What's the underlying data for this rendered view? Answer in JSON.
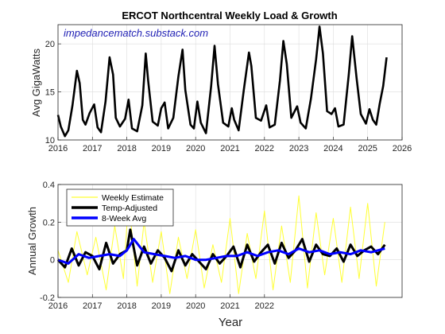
{
  "chart_data": [
    {
      "type": "line",
      "title": "ERCOT Northcentral Weekly Load & Growth",
      "annotation": "impedancematch.substack.com",
      "xlabel": "",
      "ylabel": "Avg GigaWatts",
      "xlim": [
        2016,
        2026
      ],
      "ylim": [
        10,
        22
      ],
      "xticks": [
        2016,
        2017,
        2018,
        2019,
        2020,
        2021,
        2022,
        2023,
        2024,
        2025,
        2026
      ],
      "yticks": [
        10,
        15,
        20
      ],
      "grid": true,
      "series": [
        {
          "color": "#000000",
          "x": [
            2016.0,
            2016.08,
            2016.2,
            2016.3,
            2016.42,
            2016.55,
            2016.63,
            2016.72,
            2016.8,
            2016.92,
            2017.05,
            2017.15,
            2017.25,
            2017.38,
            2017.5,
            2017.6,
            2017.68,
            2017.8,
            2017.95,
            2018.05,
            2018.15,
            2018.3,
            2018.45,
            2018.55,
            2018.62,
            2018.75,
            2018.9,
            2019.0,
            2019.1,
            2019.2,
            2019.35,
            2019.5,
            2019.62,
            2019.7,
            2019.85,
            2019.95,
            2020.05,
            2020.15,
            2020.3,
            2020.45,
            2020.55,
            2020.65,
            2020.8,
            2020.95,
            2021.05,
            2021.12,
            2021.25,
            2021.4,
            2021.55,
            2021.62,
            2021.75,
            2021.9,
            2022.05,
            2022.15,
            2022.3,
            2022.45,
            2022.55,
            2022.65,
            2022.78,
            2022.95,
            2023.05,
            2023.2,
            2023.35,
            2023.5,
            2023.6,
            2023.7,
            2023.82,
            2023.95,
            2024.05,
            2024.15,
            2024.3,
            2024.45,
            2024.55,
            2024.68,
            2024.8,
            2024.95,
            2025.05,
            2025.15,
            2025.25,
            2025.35,
            2025.45,
            2025.55
          ],
          "values": [
            12.6,
            11.4,
            10.4,
            11.0,
            13.6,
            17.2,
            15.9,
            12.1,
            11.6,
            12.8,
            13.7,
            11.3,
            10.8,
            14.0,
            18.6,
            16.8,
            12.3,
            11.4,
            12.2,
            14.2,
            11.2,
            10.9,
            13.6,
            19.0,
            16.2,
            11.9,
            11.5,
            13.3,
            13.9,
            11.2,
            12.3,
            16.6,
            19.4,
            15.2,
            11.6,
            11.2,
            14.0,
            11.8,
            10.7,
            15.6,
            19.8,
            15.8,
            11.8,
            11.4,
            13.3,
            12.1,
            11.0,
            15.2,
            19.1,
            17.7,
            12.3,
            12.0,
            13.6,
            11.3,
            11.6,
            16.2,
            20.3,
            17.9,
            12.3,
            13.5,
            11.8,
            11.2,
            14.3,
            18.4,
            21.8,
            19.0,
            13.0,
            12.7,
            13.3,
            11.4,
            11.6,
            16.8,
            20.8,
            16.4,
            12.7,
            11.7,
            13.2,
            12.1,
            11.6,
            13.8,
            15.6,
            18.6
          ]
        }
      ]
    },
    {
      "type": "line",
      "title": "",
      "xlabel": "Year",
      "ylabel": "Annual Growth",
      "xlim": [
        2016,
        2026
      ],
      "ylim": [
        -0.2,
        0.4
      ],
      "xticks": [
        2016,
        2017,
        2018,
        2019,
        2020,
        2021,
        2022
      ],
      "yticks": [
        -0.2,
        0,
        0.2,
        0.4
      ],
      "grid": true,
      "legend": "top-left",
      "series": [
        {
          "name": "Weekly Estimate",
          "color": "#ffff33",
          "x": [
            2016.0,
            2016.3,
            2016.55,
            2016.85,
            2017.1,
            2017.4,
            2017.65,
            2017.9,
            2018.05,
            2018.3,
            2018.5,
            2018.75,
            2019.0,
            2019.25,
            2019.5,
            2019.75,
            2020.0,
            2020.25,
            2020.5,
            2020.75,
            2021.0,
            2021.25,
            2021.5,
            2021.75,
            2022.0,
            2022.25,
            2022.5,
            2022.75,
            2023.0,
            2023.25,
            2023.5,
            2023.75,
            2024.0,
            2024.25,
            2024.5,
            2024.75,
            2025.0,
            2025.25,
            2025.5
          ],
          "values": [
            0.05,
            -0.12,
            0.15,
            -0.08,
            0.12,
            -0.16,
            0.18,
            -0.1,
            0.32,
            -0.14,
            0.2,
            -0.12,
            0.15,
            -0.18,
            0.12,
            -0.1,
            0.16,
            -0.15,
            0.08,
            -0.12,
            0.22,
            -0.18,
            0.14,
            -0.1,
            0.26,
            -0.16,
            0.18,
            -0.12,
            0.34,
            -0.15,
            0.25,
            -0.08,
            0.22,
            -0.12,
            0.28,
            -0.1,
            0.3,
            -0.14,
            0.2
          ]
        },
        {
          "name": "Temp-Adjusted",
          "color": "#000000",
          "x": [
            2016.0,
            2016.2,
            2016.4,
            2016.6,
            2016.8,
            2017.0,
            2017.2,
            2017.4,
            2017.6,
            2017.8,
            2018.0,
            2018.1,
            2018.3,
            2018.5,
            2018.7,
            2018.9,
            2019.1,
            2019.3,
            2019.5,
            2019.7,
            2019.9,
            2020.1,
            2020.3,
            2020.5,
            2020.7,
            2020.9,
            2021.1,
            2021.3,
            2021.5,
            2021.7,
            2021.9,
            2022.1,
            2022.3,
            2022.5,
            2022.7,
            2022.9,
            2023.1,
            2023.3,
            2023.5,
            2023.7,
            2023.9,
            2024.1,
            2024.3,
            2024.5,
            2024.7,
            2024.9,
            2025.1,
            2025.3,
            2025.5
          ],
          "values": [
            0.0,
            -0.04,
            0.06,
            -0.03,
            0.04,
            0.02,
            -0.05,
            0.09,
            -0.02,
            0.03,
            0.05,
            0.16,
            -0.03,
            0.07,
            -0.02,
            0.05,
            0.01,
            -0.06,
            0.05,
            -0.03,
            0.03,
            -0.01,
            -0.05,
            0.03,
            -0.02,
            0.02,
            0.07,
            -0.04,
            0.08,
            -0.01,
            0.04,
            0.08,
            -0.02,
            0.09,
            0.01,
            0.05,
            0.11,
            -0.01,
            0.08,
            0.03,
            0.02,
            0.06,
            -0.01,
            0.08,
            0.02,
            0.05,
            0.07,
            0.03,
            0.08
          ]
        },
        {
          "name": "8-Week Avg",
          "color": "#0000ff",
          "x": [
            2016.0,
            2016.3,
            2016.6,
            2016.9,
            2017.2,
            2017.5,
            2017.8,
            2018.0,
            2018.2,
            2018.5,
            2018.8,
            2019.1,
            2019.4,
            2019.7,
            2020.0,
            2020.3,
            2020.6,
            2020.9,
            2021.2,
            2021.5,
            2021.8,
            2022.1,
            2022.4,
            2022.7,
            2023.0,
            2023.3,
            2023.6,
            2023.9,
            2024.2,
            2024.5,
            2024.8,
            2025.1,
            2025.5
          ],
          "values": [
            0.0,
            -0.02,
            0.03,
            0.01,
            0.02,
            0.03,
            0.02,
            0.05,
            0.11,
            0.04,
            0.03,
            0.02,
            0.01,
            0.02,
            0.0,
            0.0,
            0.01,
            0.02,
            0.02,
            0.04,
            0.02,
            0.04,
            0.05,
            0.03,
            0.06,
            0.04,
            0.05,
            0.03,
            0.04,
            0.03,
            0.05,
            0.04,
            0.06
          ]
        }
      ]
    }
  ]
}
